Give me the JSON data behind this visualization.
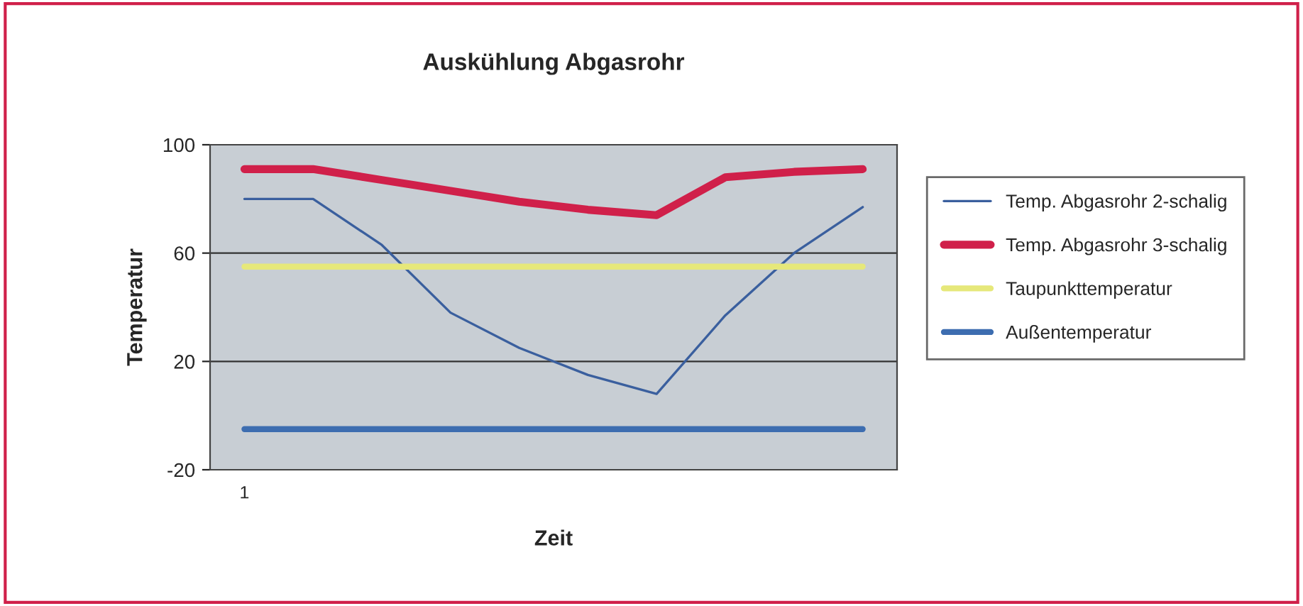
{
  "chart_data": {
    "type": "line",
    "title": "Auskühlung Abgasrohr",
    "xlabel": "Zeit",
    "ylabel": "Temperatur",
    "categories": [
      "1",
      null,
      null,
      null,
      null,
      null,
      null,
      null,
      null,
      null
    ],
    "series": [
      {
        "name": "Temp. Abgasrohr 2-schalig",
        "color": "#3a5f9e",
        "values": [
          80,
          80,
          63,
          38,
          25,
          15,
          8,
          37,
          60,
          77
        ]
      },
      {
        "name": "Temp. Abgasrohr 3-schalig",
        "color": "#d0204a",
        "values": [
          91,
          91,
          87,
          83,
          79,
          76,
          74,
          88,
          90,
          91
        ]
      },
      {
        "name": "Taupunkttemperatur",
        "color": "#e6e87a",
        "values": [
          55,
          55,
          55,
          55,
          55,
          55,
          55,
          55,
          55,
          55
        ]
      },
      {
        "name": "Außentemperatur",
        "color": "#3d6db0",
        "values": [
          -5,
          -5,
          -5,
          -5,
          -5,
          -5,
          -5,
          -5,
          -5,
          -5
        ]
      }
    ],
    "ylim": [
      -20,
      100
    ],
    "yticks": [
      -20,
      20,
      60,
      100
    ],
    "grid": "y",
    "legend": "right",
    "marker": "none",
    "line_style": "solid"
  }
}
